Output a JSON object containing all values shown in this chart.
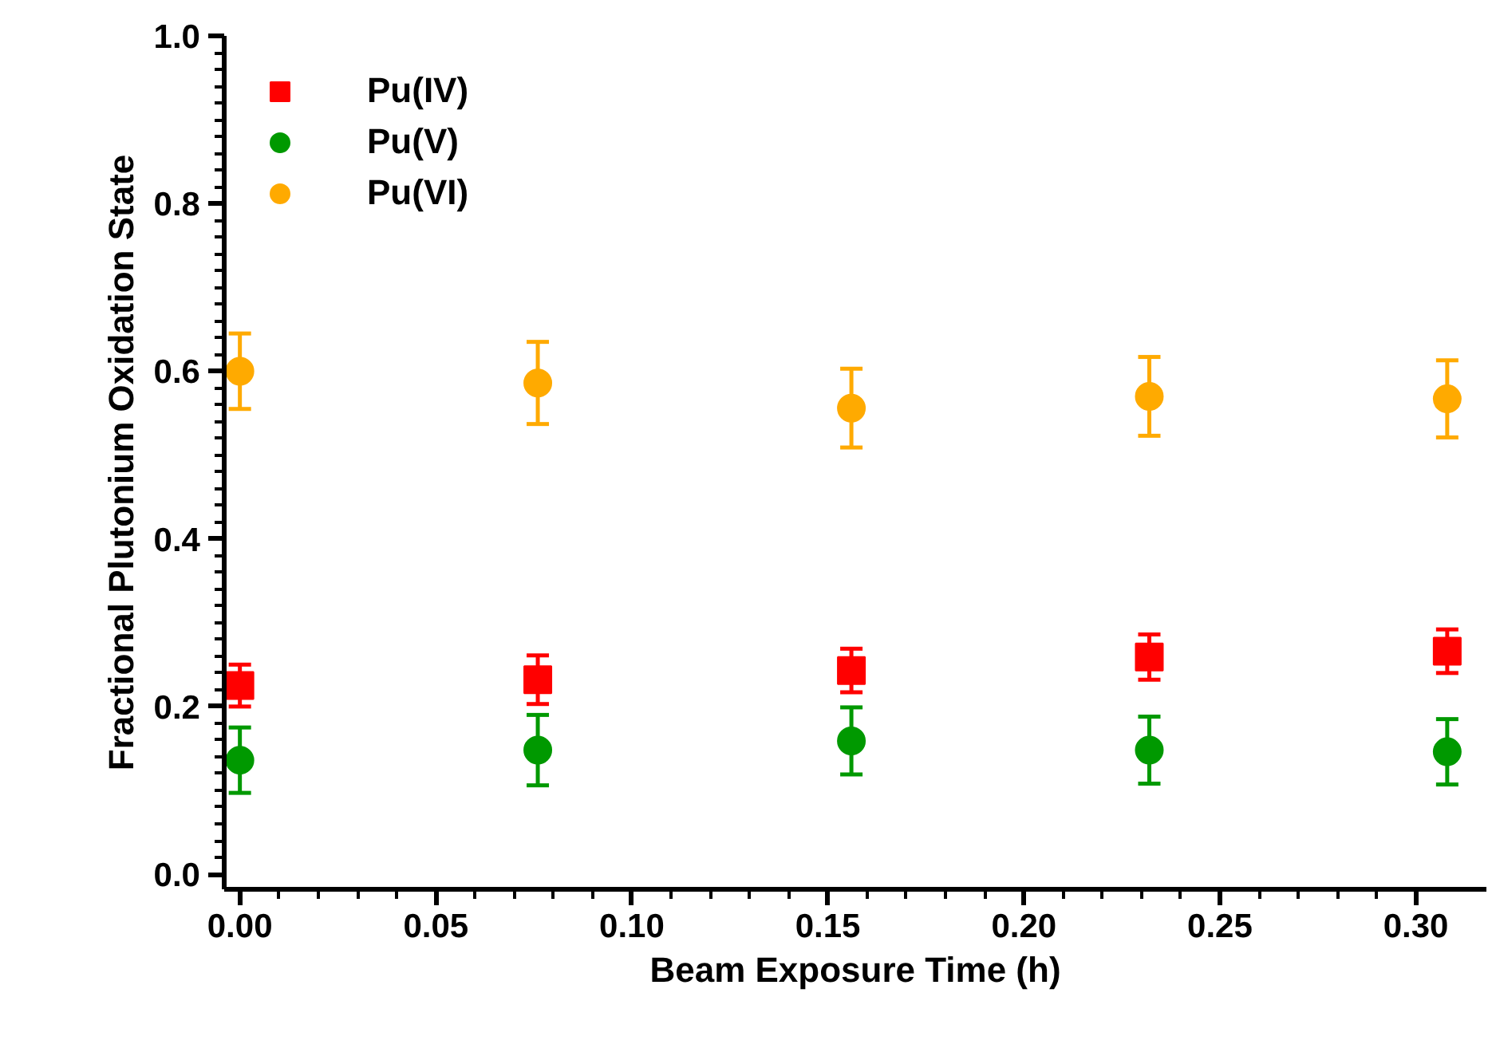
{
  "chart_data": {
    "type": "scatter",
    "xlabel": "Beam Exposure Time (h)",
    "ylabel": "Fractional Plutonium Oxidation State",
    "x": [
      0,
      0.076,
      0.156,
      0.232,
      0.308
    ],
    "series": [
      {
        "name": "Pu(IV)",
        "color": "#ff0000",
        "marker": "square",
        "values": [
          0.225,
          0.232,
          0.243,
          0.259,
          0.266
        ],
        "errors": [
          0.025,
          0.029,
          0.026,
          0.027,
          0.026
        ]
      },
      {
        "name": "Pu(V)",
        "color": "#009900",
        "marker": "circle",
        "values": [
          0.136,
          0.148,
          0.159,
          0.148,
          0.146
        ],
        "errors": [
          0.039,
          0.042,
          0.04,
          0.04,
          0.039
        ]
      },
      {
        "name": "Pu(VI)",
        "color": "#ffaa00",
        "marker": "circle",
        "values": [
          0.6,
          0.586,
          0.556,
          0.57,
          0.567
        ],
        "errors": [
          0.045,
          0.049,
          0.047,
          0.047,
          0.046
        ]
      }
    ],
    "xlim": [
      -0.004,
      0.318
    ],
    "ylim": [
      -0.018,
      1.0
    ],
    "xticks": [
      {
        "value": 0,
        "label": "0.00"
      },
      0.05,
      {
        "value": 0.1,
        "label": "0.10"
      },
      0.15,
      {
        "value": 0.2,
        "label": "0.20"
      },
      0.25,
      {
        "value": 0.3,
        "label": "0.30"
      }
    ],
    "yticks": [
      {
        "value": 0,
        "label": "0.0"
      },
      0.2,
      0.4,
      0.6,
      0.8,
      {
        "value": 1,
        "label": "1.0"
      }
    ],
    "grid": false,
    "legend": "top left"
  }
}
